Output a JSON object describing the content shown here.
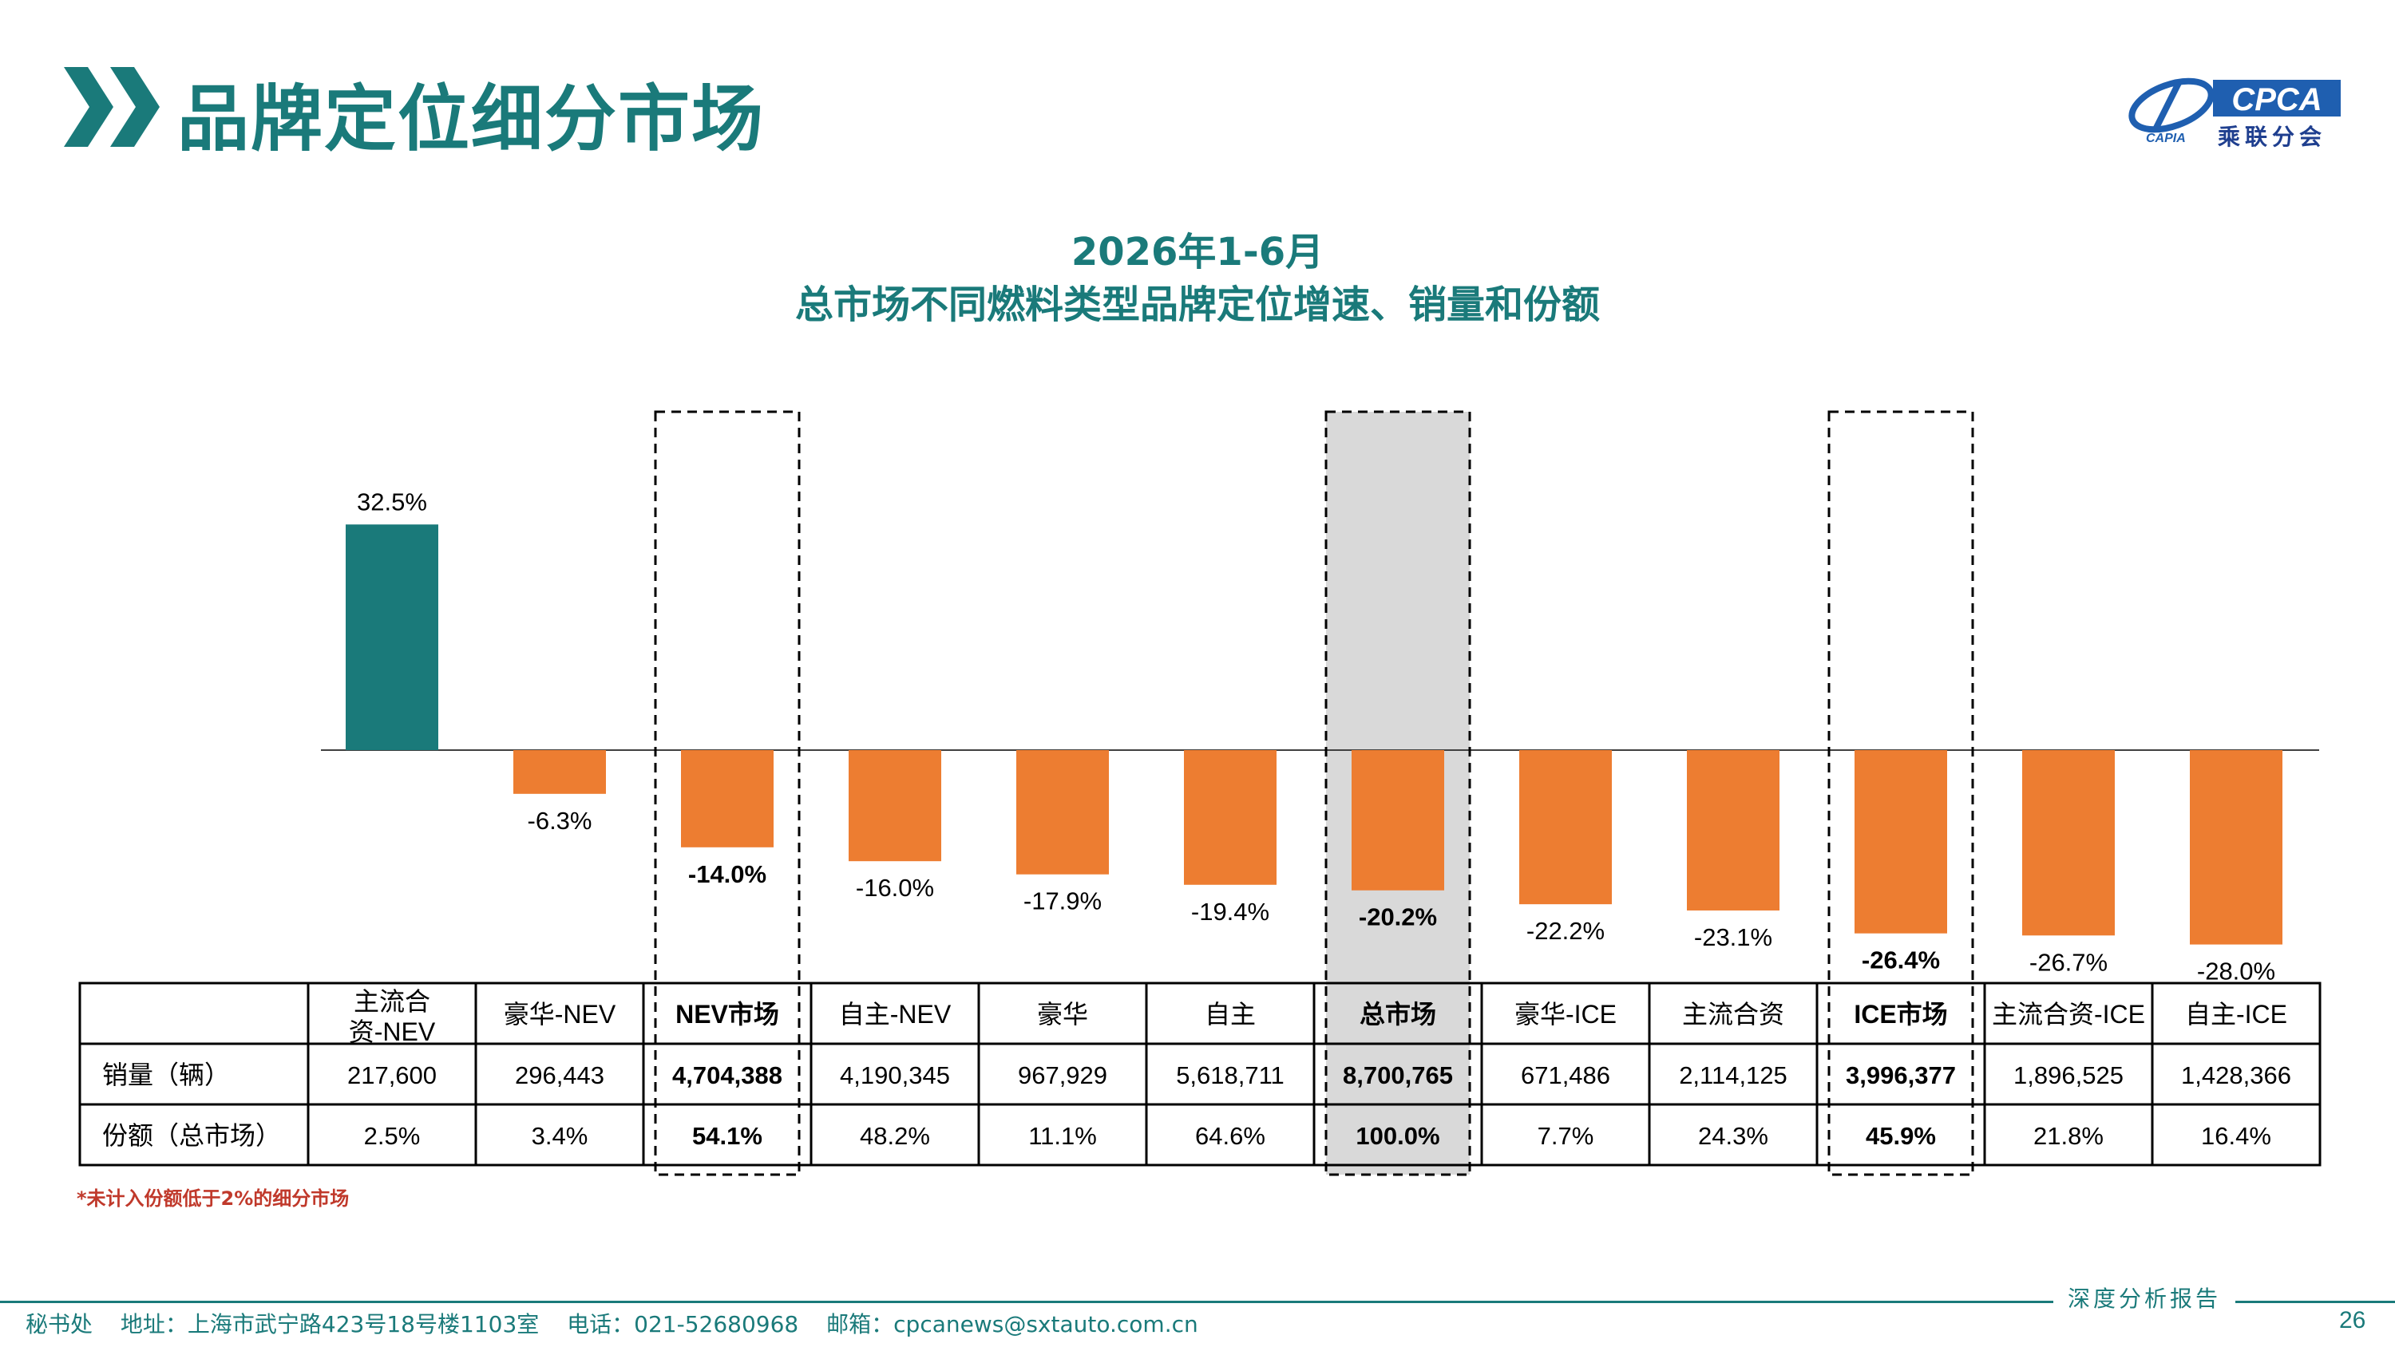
{
  "header": {
    "title": "品牌定位细分市场",
    "logo_text": "CPCA",
    "logo_cn": "乘联分会",
    "logo_small": "CAPIA"
  },
  "chart_titles": {
    "line1": "2026年1-6月",
    "line2": "总市场不同燃料类型品牌定位增速、销量和份额"
  },
  "colors": {
    "teal": "#1a7a7a",
    "orange": "#ed7d31",
    "highlight_bg": "#d9d9d9"
  },
  "chart_data": {
    "type": "bar",
    "title": "总市场不同燃料类型品牌定位增速、销量和份额",
    "subtitle": "2026年1-6月",
    "categories": [
      "主流合资-NEV",
      "豪华-NEV",
      "NEV市场",
      "自主-NEV",
      "豪华",
      "自主",
      "总市场",
      "豪华-ICE",
      "主流合资",
      "ICE市场",
      "主流合资-ICE",
      "自主-ICE"
    ],
    "category_labels": [
      "主流合\n资-NEV",
      "豪华-NEV",
      "NEV市场",
      "自主-NEV",
      "豪华",
      "自主",
      "总市场",
      "豪华-ICE",
      "主流合资",
      "ICE市场",
      "主流合资-ICE",
      "自主-ICE"
    ],
    "values": [
      32.5,
      -6.3,
      -14.0,
      -16.0,
      -17.9,
      -19.4,
      -20.2,
      -22.2,
      -23.1,
      -26.4,
      -26.7,
      -28.0
    ],
    "value_labels": [
      "32.5%",
      "-6.3%",
      "-14.0%",
      "-16.0%",
      "-17.9%",
      "-19.4%",
      "-20.2%",
      "-22.2%",
      "-23.1%",
      "-26.4%",
      "-26.7%",
      "-28.0%"
    ],
    "highlighted": [
      false,
      false,
      true,
      false,
      false,
      false,
      true,
      false,
      false,
      true,
      false,
      false
    ],
    "shaded": [
      false,
      false,
      false,
      false,
      false,
      false,
      true,
      false,
      false,
      false,
      false,
      false
    ],
    "table_rows": [
      {
        "label": "销量（辆）",
        "cells": [
          "217,600",
          "296,443",
          "4,704,388",
          "4,190,345",
          "967,929",
          "5,618,711",
          "8,700,765",
          "671,486",
          "2,114,125",
          "3,996,377",
          "1,896,525",
          "1,428,366"
        ]
      },
      {
        "label": "份额（总市场）",
        "cells": [
          "2.5%",
          "3.4%",
          "54.1%",
          "48.2%",
          "11.1%",
          "64.6%",
          "100.0%",
          "7.7%",
          "24.3%",
          "45.9%",
          "21.8%",
          "16.4%"
        ]
      }
    ],
    "ylim": [
      -35,
      40
    ],
    "grid": false,
    "legend": "none"
  },
  "footnote": "*未计入份额低于2%的细分市场",
  "footer": {
    "office": "秘书处",
    "address": "地址：上海市武宁路423号18号楼1103室",
    "phone": "电话：021-52680968",
    "email": "邮箱：cpcanews@sxtauto.com.cn",
    "report_label": "深度分析报告",
    "page_number": "26"
  }
}
